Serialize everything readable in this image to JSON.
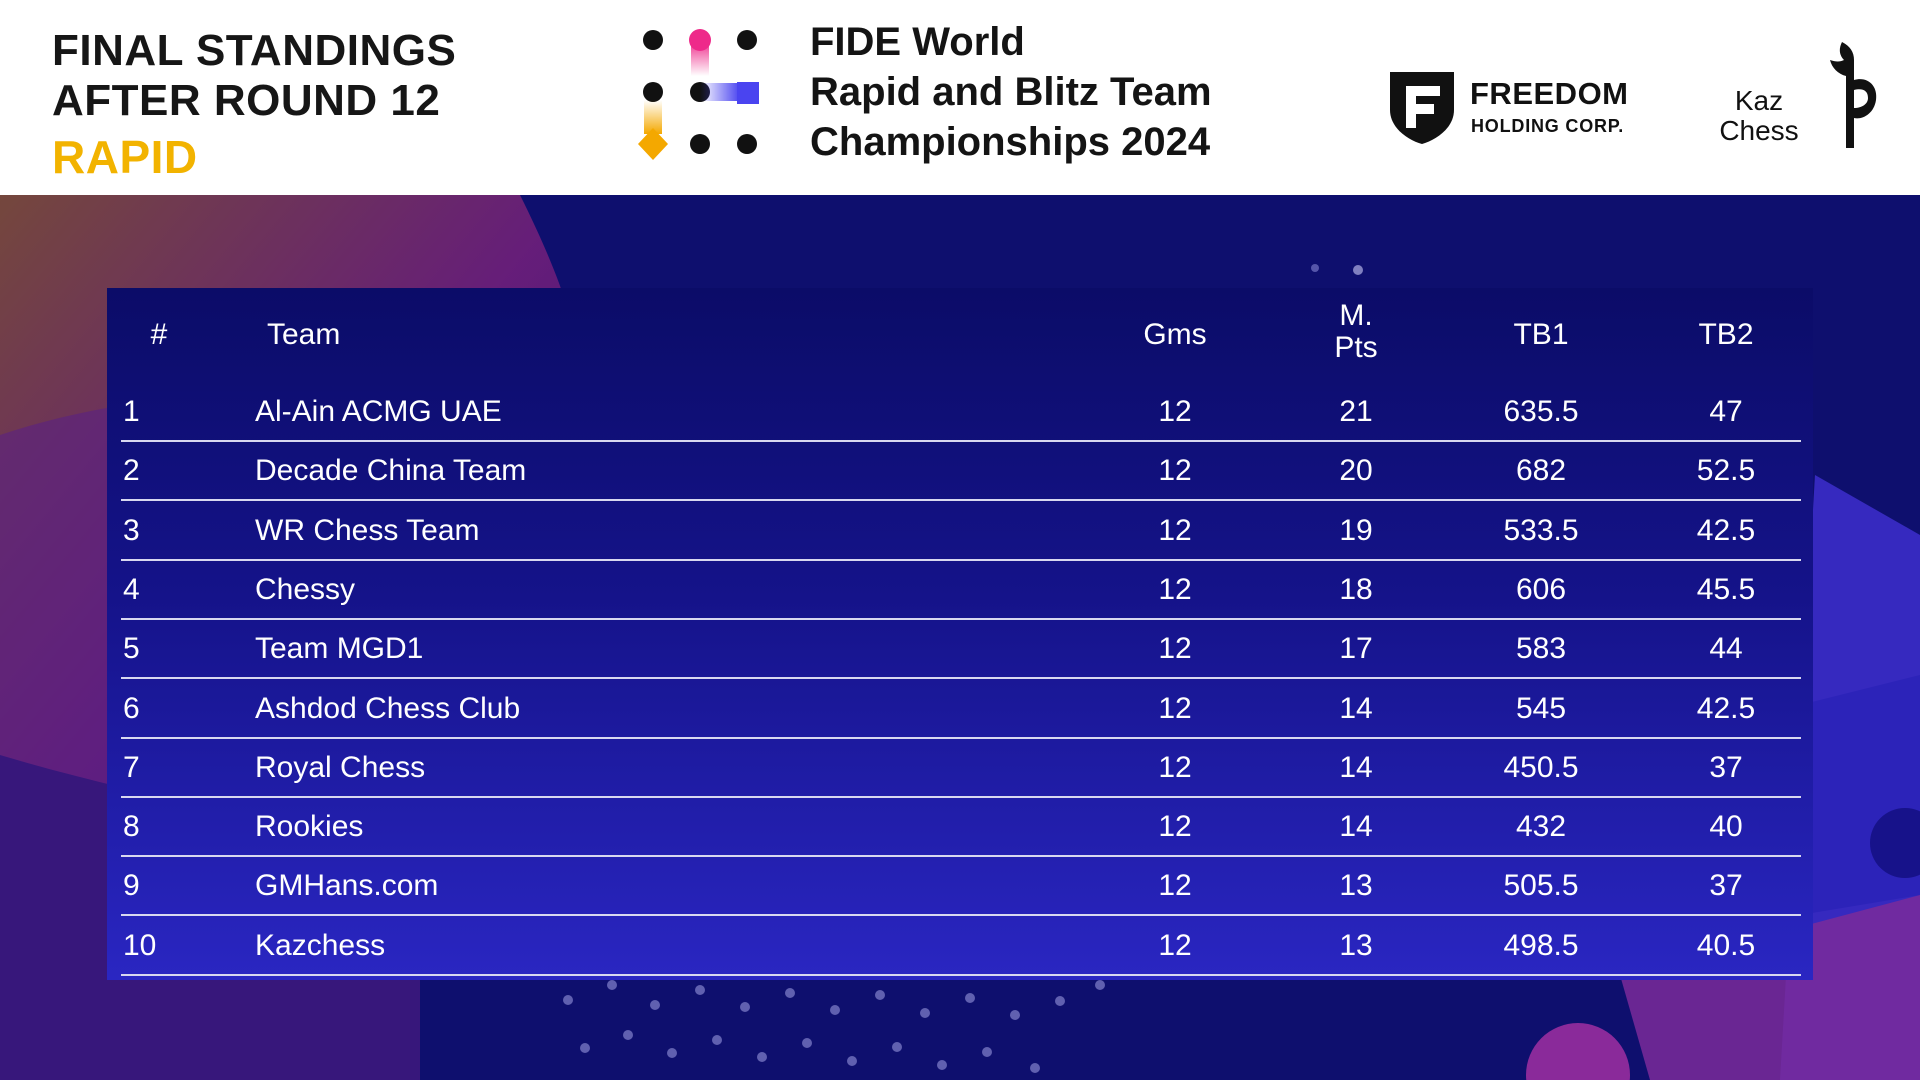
{
  "header": {
    "title_line1": "FINAL STANDINGS",
    "title_line2": "AFTER ROUND 12",
    "title_line3": "RAPID",
    "event_line1": "FIDE World",
    "event_line2": "Rapid and Blitz Team",
    "event_line3": "Championships 2024",
    "sponsor1_name": "FREEDOM",
    "sponsor1_sub": "HOLDING CORP.",
    "sponsor2_line1": "Kaz",
    "sponsor2_line2": "Chess"
  },
  "colors": {
    "accent_yellow": "#f2b300",
    "background_navy": "#0e0f6e",
    "logo_pink": "#ee2a8a",
    "logo_blue": "#4a44f0",
    "logo_orange": "#f4a800"
  },
  "table": {
    "headers": {
      "rank": "#",
      "team": "Team",
      "gms": "Gms",
      "mpts_line1": "M.",
      "mpts_line2": "Pts",
      "tb1": "TB1",
      "tb2": "TB2"
    },
    "rows": [
      {
        "rank": "1",
        "team": "Al-Ain ACMG UAE",
        "gms": "12",
        "mpts": "21",
        "tb1": "635.5",
        "tb2": "47"
      },
      {
        "rank": "2",
        "team": "Decade China Team",
        "gms": "12",
        "mpts": "20",
        "tb1": "682",
        "tb2": "52.5"
      },
      {
        "rank": "3",
        "team": "WR Chess Team",
        "gms": "12",
        "mpts": "19",
        "tb1": "533.5",
        "tb2": "42.5"
      },
      {
        "rank": "4",
        "team": "Chessy",
        "gms": "12",
        "mpts": "18",
        "tb1": "606",
        "tb2": "45.5"
      },
      {
        "rank": "5",
        "team": "Team MGD1",
        "gms": "12",
        "mpts": "17",
        "tb1": "583",
        "tb2": "44"
      },
      {
        "rank": "6",
        "team": "Ashdod Chess Club",
        "gms": "12",
        "mpts": "14",
        "tb1": "545",
        "tb2": "42.5"
      },
      {
        "rank": "7",
        "team": "Royal Chess",
        "gms": "12",
        "mpts": "14",
        "tb1": "450.5",
        "tb2": "37"
      },
      {
        "rank": "8",
        "team": "Rookies",
        "gms": "12",
        "mpts": "14",
        "tb1": "432",
        "tb2": "40"
      },
      {
        "rank": "9",
        "team": "GMHans.com",
        "gms": "12",
        "mpts": "13",
        "tb1": "505.5",
        "tb2": "37"
      },
      {
        "rank": "10",
        "team": "Kazchess",
        "gms": "12",
        "mpts": "13",
        "tb1": "498.5",
        "tb2": "40.5"
      }
    ]
  }
}
